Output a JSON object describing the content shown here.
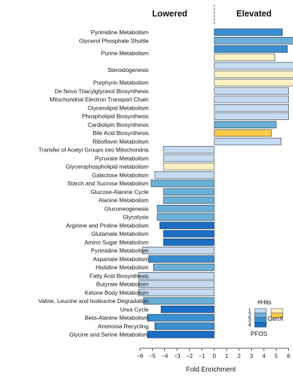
{
  "chart_data": {
    "type": "bar",
    "orientation": "horizontal",
    "group_labels": {
      "lowered": "Lowered",
      "elevated": "Elevated"
    },
    "xlabel": "Fold Enrichment",
    "xlim": [
      -6.5,
      6.5
    ],
    "xticks": [
      -6,
      -5,
      -4,
      -3,
      -2,
      -1,
      0,
      1,
      2,
      3,
      4,
      5,
      6
    ],
    "colors": {
      "pfos": [
        "#c6dbef",
        "#6baed6",
        "#3a8fd0",
        "#1a6fc4"
      ],
      "genx": [
        "#fdf0c4",
        "#fbc94a"
      ]
    },
    "legend": {
      "title": "#Hits",
      "levels": [
        "1",
        "2",
        "3",
        "4"
      ],
      "pfos_label": "PFOS",
      "genx_label": "GenX",
      "position": "bottom-right"
    },
    "bars": [
      {
        "label": "Pyrimidine Metabolism",
        "value": 5.5,
        "hits": 3,
        "source": "pfos"
      },
      {
        "label": "Glycerol Phosphate Shuttle",
        "value": 6.6,
        "hits": 2,
        "source": "pfos"
      },
      {
        "label": "Purine Metabolism",
        "value": 5.9,
        "hits": 3,
        "source": "pfos"
      },
      {
        "label": "Purine Metabolism",
        "value": 4.9,
        "hits": 1,
        "source": "genx"
      },
      {
        "label": "Steroidogenesis",
        "value": 6.6,
        "hits": 1,
        "source": "pfos"
      },
      {
        "label": "Steroidogenesis",
        "value": 6.5,
        "hits": 1,
        "source": "genx"
      },
      {
        "label": "Porphyrin Metabolism",
        "value": 6.6,
        "hits": 1,
        "source": "genx"
      },
      {
        "label": "De Novo Triacylglycerol Biosynthesis",
        "value": 6.0,
        "hits": 1,
        "source": "pfos"
      },
      {
        "label": "Mitochondrial Electron Transport Chain",
        "value": 6.0,
        "hits": 1,
        "source": "pfos"
      },
      {
        "label": "Glycerolipid Metabolism",
        "value": 6.0,
        "hits": 1,
        "source": "pfos"
      },
      {
        "label": "Phospholipid Biosynthesis",
        "value": 6.0,
        "hits": 1,
        "source": "pfos"
      },
      {
        "label": "Cardiolipin Biosynthesis",
        "value": 5.0,
        "hits": 2,
        "source": "pfos"
      },
      {
        "label": "Bile Acid Biosynthesis",
        "value": 4.6,
        "hits": 2,
        "source": "genx"
      },
      {
        "label": "Riboflavin Metabolism",
        "value": 5.4,
        "hits": 1,
        "source": "pfos"
      },
      {
        "label": "Transfer of Acetyl Groups into Mitochondria",
        "value": -4.1,
        "hits": 1,
        "source": "pfos"
      },
      {
        "label": "Pyruvate Metabolism",
        "value": -4.1,
        "hits": 1,
        "source": "pfos"
      },
      {
        "label": "Glycerophospholipid metabolism",
        "value": -4.1,
        "hits": 1,
        "source": "genx"
      },
      {
        "label": "Galactose Metabolism",
        "value": -4.8,
        "hits": 1,
        "source": "pfos"
      },
      {
        "label": "Starch and Sucrose Metabolism",
        "value": -5.1,
        "hits": 2,
        "source": "pfos"
      },
      {
        "label": "Glucose-Alanine Cycle",
        "value": -4.1,
        "hits": 2,
        "source": "pfos"
      },
      {
        "label": "Alanine Metabolism",
        "value": -4.1,
        "hits": 2,
        "source": "pfos"
      },
      {
        "label": "Gluconeogenesis",
        "value": -4.6,
        "hits": 2,
        "source": "pfos"
      },
      {
        "label": "Glycolysis",
        "value": -4.6,
        "hits": 2,
        "source": "pfos"
      },
      {
        "label": "Arginine and Proline Metabolism",
        "value": -4.4,
        "hits": 4,
        "source": "pfos"
      },
      {
        "label": "Glutamate Metabolism",
        "value": -4.1,
        "hits": 4,
        "source": "pfos"
      },
      {
        "label": "Amino Sugar Metabolism",
        "value": -4.1,
        "hits": 4,
        "source": "pfos"
      },
      {
        "label": "Pyrimidine Metabolism",
        "value": -5.8,
        "hits": 1,
        "source": "pfos"
      },
      {
        "label": "Aspartate Metabolism",
        "value": -5.3,
        "hits": 3,
        "source": "pfos"
      },
      {
        "label": "Histidine Metabolism",
        "value": -4.9,
        "hits": 2,
        "source": "pfos"
      },
      {
        "label": "Fatty Acid Biosynthesis",
        "value": -6.1,
        "hits": 1,
        "source": "pfos"
      },
      {
        "label": "Butyrate Metabolism",
        "value": -6.1,
        "hits": 1,
        "source": "pfos"
      },
      {
        "label": "Ketone Body Metabolism",
        "value": -6.1,
        "hits": 1,
        "source": "pfos"
      },
      {
        "label": "Valine, Leucine and Isoleucine Degradation",
        "value": -5.7,
        "hits": 2,
        "source": "pfos"
      },
      {
        "label": "Urea Cycle",
        "value": -4.3,
        "hits": 4,
        "source": "pfos"
      },
      {
        "label": "Beta-Alanine Metabolism",
        "value": -5.4,
        "hits": 3,
        "source": "pfos"
      },
      {
        "label": "Ammonia Recycling",
        "value": -4.8,
        "hits": 3,
        "source": "pfos"
      },
      {
        "label": "Glycine and Serine Metabolism",
        "value": -5.4,
        "hits": 4,
        "source": "pfos"
      }
    ]
  }
}
